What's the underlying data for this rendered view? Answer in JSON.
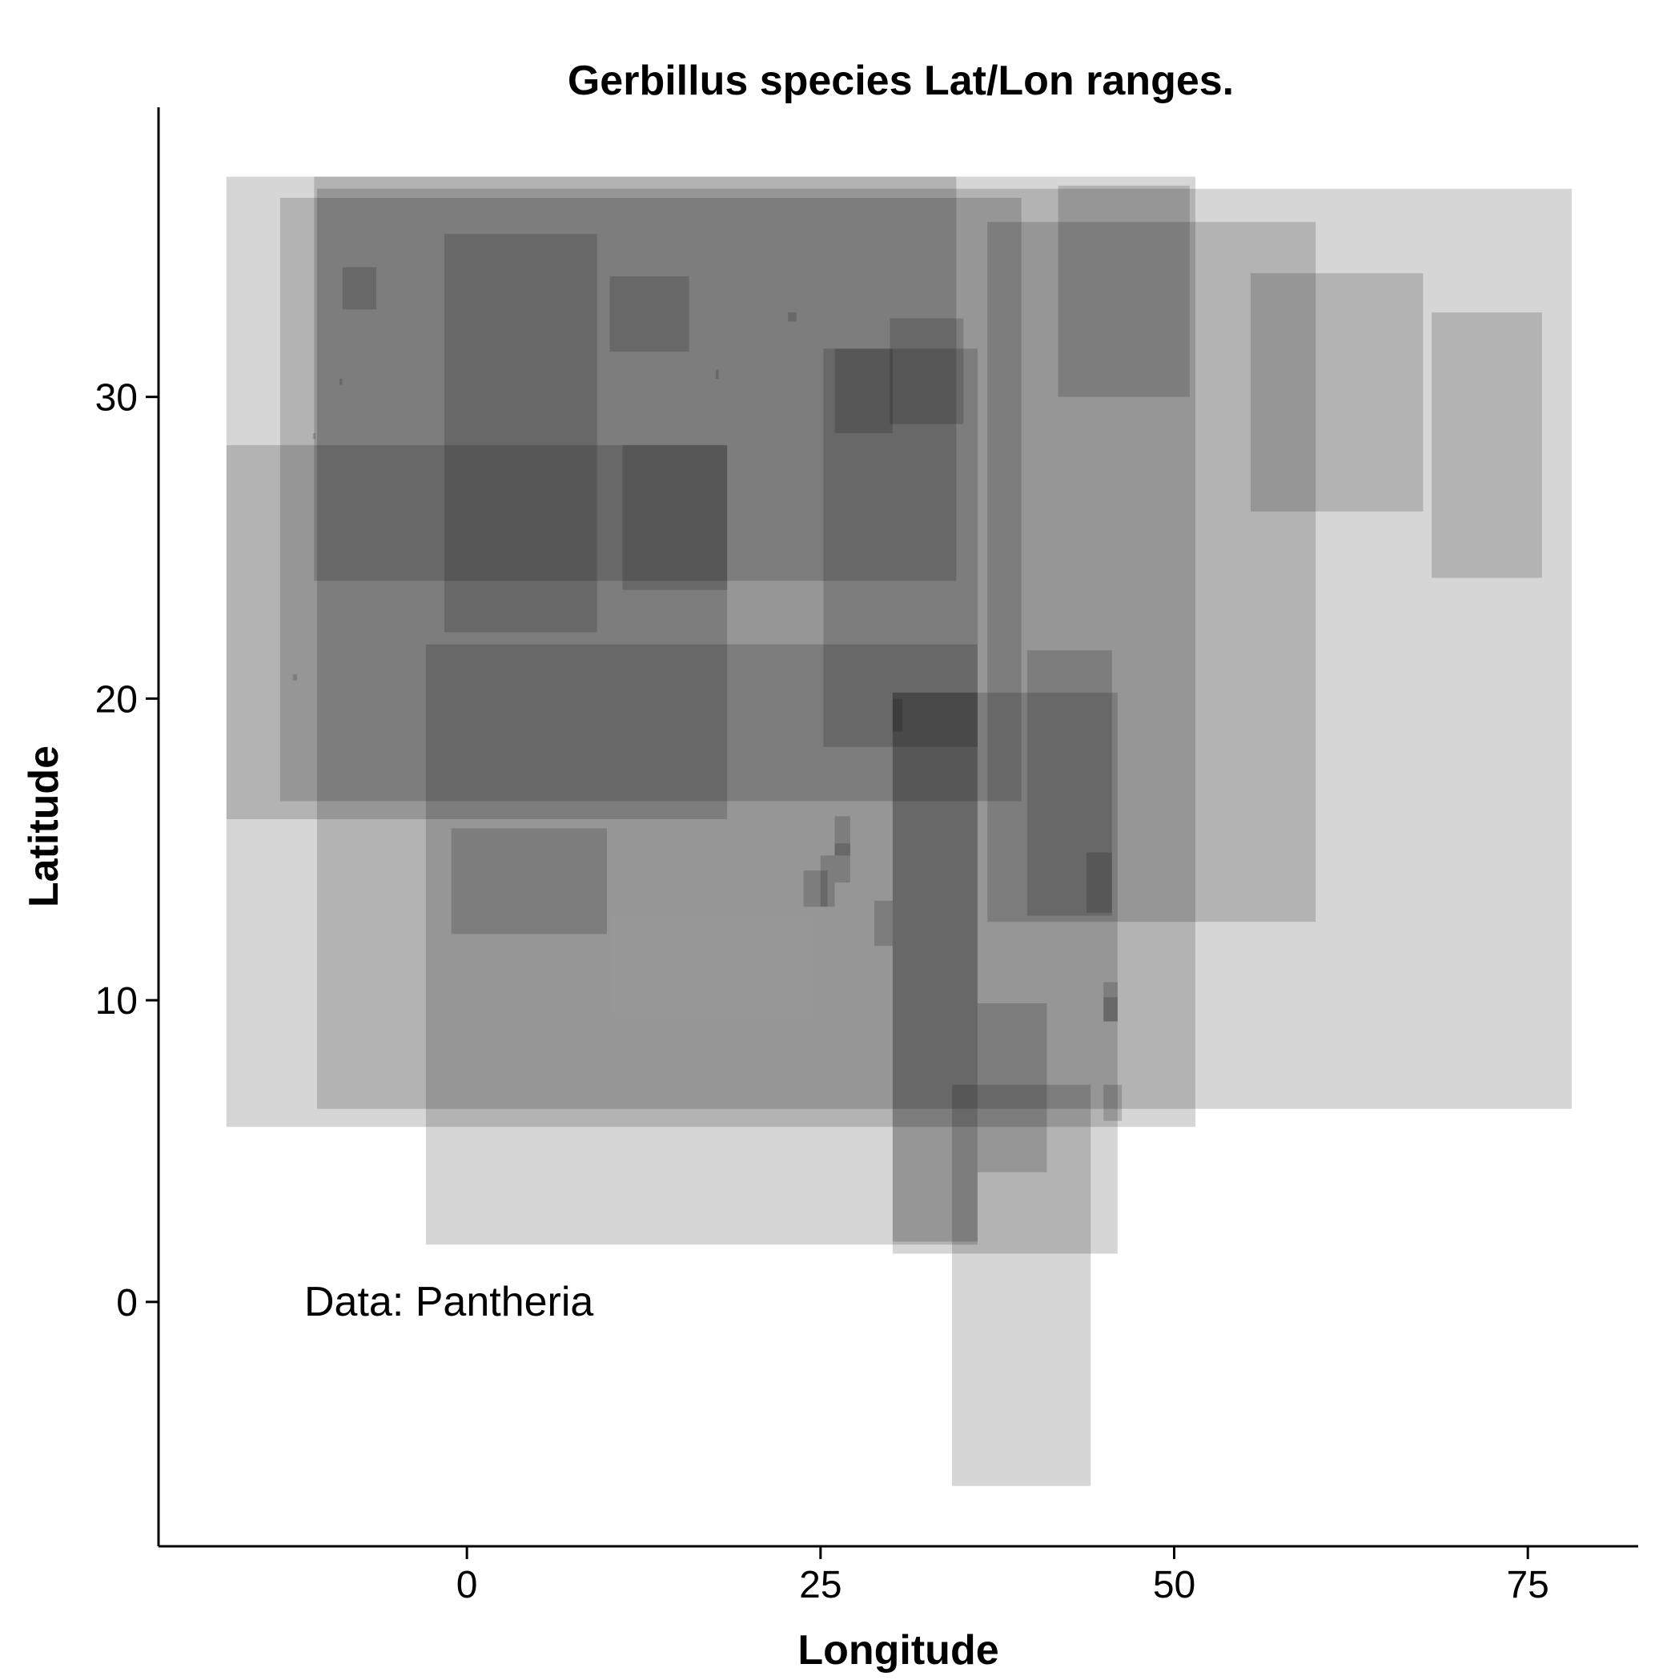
{
  "chart_data": {
    "type": "rect",
    "title": "Gerbillus species Lat/Lon ranges.",
    "xlabel": "Longitude",
    "ylabel": "Latitude",
    "xlim": [
      -21.8,
      82.8
    ],
    "ylim": [
      -8.1,
      39.6
    ],
    "x_ticks": [
      0,
      25,
      50,
      75
    ],
    "y_ticks": [
      0,
      10,
      20,
      30
    ],
    "annotation": "Data: Pantheria",
    "fill_color": "#000000",
    "fill_opacity": 0.16,
    "grid": false,
    "legend": "none",
    "rects": [
      {
        "lon_min": -17.0,
        "lon_max": 51.5,
        "lat_min": 5.8,
        "lat_max": 37.3
      },
      {
        "lon_min": -10.6,
        "lon_max": 78.1,
        "lat_min": 6.4,
        "lat_max": 36.9
      },
      {
        "lon_min": -2.9,
        "lon_max": 36.1,
        "lat_min": 1.9,
        "lat_max": 21.8
      },
      {
        "lon_min": -13.2,
        "lon_max": 39.2,
        "lat_min": 16.6,
        "lat_max": 36.6
      },
      {
        "lon_min": -10.8,
        "lon_max": 34.6,
        "lat_min": 23.9,
        "lat_max": 37.3
      },
      {
        "lon_min": -17.0,
        "lon_max": 18.4,
        "lat_min": 16.0,
        "lat_max": 28.4
      },
      {
        "lon_min": -1.6,
        "lon_max": 9.2,
        "lat_min": 22.2,
        "lat_max": 35.4
      },
      {
        "lon_min": 10.1,
        "lon_max": 15.7,
        "lat_min": 31.5,
        "lat_max": 34.0
      },
      {
        "lon_min": 11.0,
        "lon_max": 18.4,
        "lat_min": 23.6,
        "lat_max": 28.4
      },
      {
        "lon_min": 25.2,
        "lon_max": 36.1,
        "lat_min": 18.4,
        "lat_max": 31.6
      },
      {
        "lon_min": 26.0,
        "lon_max": 30.1,
        "lat_min": 28.8,
        "lat_max": 31.6
      },
      {
        "lon_min": 29.9,
        "lon_max": 35.1,
        "lat_min": 29.1,
        "lat_max": 32.6
      },
      {
        "lon_min": 36.8,
        "lon_max": 60.0,
        "lat_min": 12.6,
        "lat_max": 35.8
      },
      {
        "lon_min": 41.8,
        "lon_max": 51.1,
        "lat_min": 30.0,
        "lat_max": 37.0
      },
      {
        "lon_min": 55.4,
        "lon_max": 67.6,
        "lat_min": 26.2,
        "lat_max": 34.1
      },
      {
        "lon_min": 68.2,
        "lon_max": 76.0,
        "lat_min": 24.0,
        "lat_max": 32.8
      },
      {
        "lon_min": 30.1,
        "lon_max": 46.0,
        "lat_min": 1.6,
        "lat_max": 20.2
      },
      {
        "lon_min": 30.1,
        "lon_max": 36.1,
        "lat_min": 2.0,
        "lat_max": 20.2
      },
      {
        "lon_min": 39.6,
        "lon_max": 45.6,
        "lat_min": 12.8,
        "lat_max": 21.6
      },
      {
        "lon_min": -1.1,
        "lon_max": 9.9,
        "lat_min": 12.2,
        "lat_max": 15.7
      },
      {
        "lon_min": 34.3,
        "lon_max": 44.1,
        "lat_min": -6.1,
        "lat_max": 7.2
      },
      {
        "lon_min": 36.1,
        "lon_max": 41.0,
        "lat_min": 4.3,
        "lat_max": 9.9
      },
      {
        "lon_min": 45.0,
        "lon_max": 46.3,
        "lat_min": 6.0,
        "lat_max": 7.2
      },
      {
        "lon_min": 45.0,
        "lon_max": 46.0,
        "lat_min": 9.3,
        "lat_max": 10.6
      },
      {
        "lon_min": 45.0,
        "lon_max": 46.0,
        "lat_min": 9.3,
        "lat_max": 10.1
      },
      {
        "lon_min": 43.8,
        "lon_max": 45.6,
        "lat_min": 12.9,
        "lat_max": 14.9
      },
      {
        "lon_min": 23.8,
        "lon_max": 25.5,
        "lat_min": 13.1,
        "lat_max": 14.3
      },
      {
        "lon_min": 25.0,
        "lon_max": 26.0,
        "lat_min": 13.1,
        "lat_max": 14.8
      },
      {
        "lon_min": 26.0,
        "lon_max": 27.1,
        "lat_min": 13.9,
        "lat_max": 16.1
      },
      {
        "lon_min": 26.0,
        "lon_max": 27.1,
        "lat_min": 14.8,
        "lat_max": 15.2
      },
      {
        "lon_min": 28.8,
        "lon_max": 30.1,
        "lat_min": 11.8,
        "lat_max": 13.3
      },
      {
        "lon_min": 30.1,
        "lon_max": 30.8,
        "lat_min": 18.9,
        "lat_max": 20.0
      },
      {
        "lon_min": -8.8,
        "lon_max": -6.4,
        "lat_min": 32.9,
        "lat_max": 34.3
      },
      {
        "lon_min": 22.7,
        "lon_max": 23.3,
        "lat_min": 32.5,
        "lat_max": 32.8
      },
      {
        "lon_min": 17.6,
        "lon_max": 17.8,
        "lat_min": 30.6,
        "lat_max": 30.9
      },
      {
        "lon_min": -9.0,
        "lon_max": -8.8,
        "lat_min": 30.4,
        "lat_max": 30.6
      },
      {
        "lon_min": -12.3,
        "lon_max": -12.0,
        "lat_min": 20.6,
        "lat_max": 20.8
      },
      {
        "lon_min": -10.9,
        "lon_max": -10.7,
        "lat_min": 28.6,
        "lat_max": 28.8
      }
    ]
  }
}
